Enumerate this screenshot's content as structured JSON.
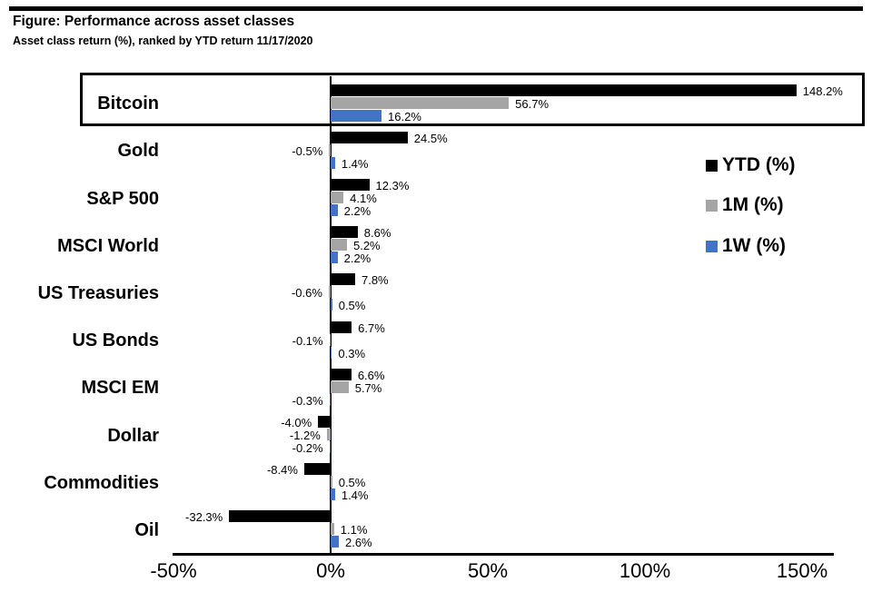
{
  "header": {
    "title": "Figure: Performance across asset classes",
    "subtitle": "Asset class return (%), ranked by YTD return 11/17/2020"
  },
  "chart_data": {
    "type": "bar",
    "orientation": "horizontal",
    "title": "Performance across asset classes",
    "subtitle": "Asset class return (%), ranked by YTD return 11/17/2020",
    "categories": [
      "Bitcoin",
      "Gold",
      "S&P 500",
      "MSCI World",
      "US Treasuries",
      "US Bonds",
      "MSCI EM",
      "Dollar",
      "Commodities",
      "Oil"
    ],
    "series": [
      {
        "name": "YTD (%)",
        "color": "#000000",
        "values": [
          148.2,
          24.5,
          12.3,
          8.6,
          7.8,
          6.7,
          6.6,
          -4.0,
          -8.4,
          -32.3
        ]
      },
      {
        "name": "1M (%)",
        "color": "#A5A5A5",
        "values": [
          56.7,
          -0.5,
          4.1,
          5.2,
          -0.6,
          -0.1,
          5.7,
          -1.2,
          0.5,
          1.1
        ]
      },
      {
        "name": "1W (%)",
        "color": "#4472C4",
        "values": [
          16.2,
          1.4,
          2.2,
          2.2,
          0.5,
          0.3,
          -0.3,
          -0.2,
          1.4,
          2.6
        ]
      }
    ],
    "data_labels": true,
    "label_format": "0.0%",
    "x_ticks": [
      "-50%",
      "0%",
      "50%",
      "100%",
      "150%"
    ],
    "x_tick_values": [
      -50,
      0,
      50,
      100,
      150
    ],
    "xlim": [
      -50.3,
      160
    ],
    "grid": false,
    "legend_position": "right",
    "highlighted_category": "Bitcoin",
    "axis_color": "#000000",
    "background_color": "#FFFFFF"
  }
}
